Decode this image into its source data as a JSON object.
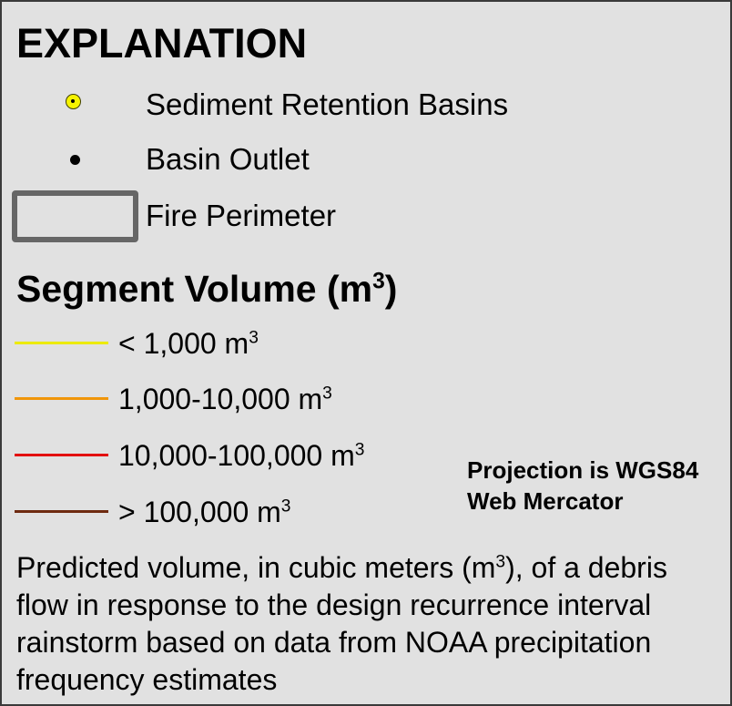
{
  "legend": {
    "title": "EXPLANATION",
    "items": [
      {
        "label": "Sediment Retention Basins",
        "icon": "yellow-circle-dot-icon",
        "color": "#f6f300"
      },
      {
        "label": "Basin Outlet",
        "icon": "black-dot-icon",
        "color": "#000000"
      },
      {
        "label": "Fire Perimeter",
        "icon": "gray-rectangle-outline-icon",
        "color": "#666666"
      }
    ]
  },
  "segment_volume": {
    "title": "Segment Volume (m",
    "title_sup": "3",
    "title_end": ")",
    "classes": [
      {
        "label": "< 1,000 m",
        "sup": "3",
        "color": "#ecea00"
      },
      {
        "label": "1,000-10,000 m",
        "sup": "3",
        "color": "#f0960a"
      },
      {
        "label": "10,000-100,000 m",
        "sup": "3",
        "color": "#e31010"
      },
      {
        "label": "> 100,000 m",
        "sup": "3",
        "color": "#6e2a10"
      }
    ]
  },
  "projection_note": "Projection is WGS84\nWeb Mercator",
  "description": {
    "before": "Predicted volume, in cubic meters (m",
    "sup": "3",
    "after": "), of a debris flow in response to the design recurrence interval rainstorm based on data from NOAA precipitation frequency estimates"
  }
}
